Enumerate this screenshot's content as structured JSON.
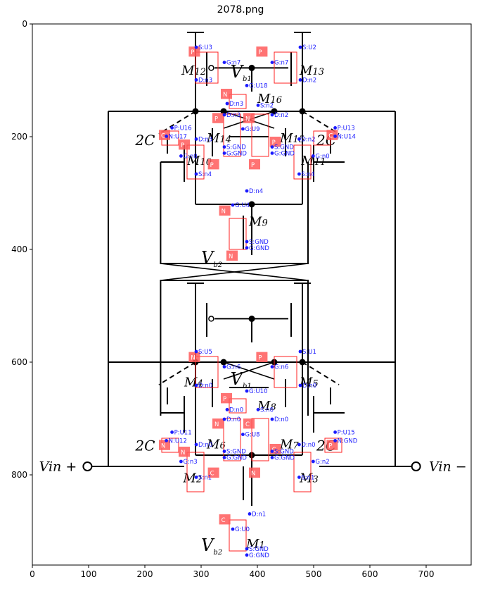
{
  "figure": {
    "title": "2078.png"
  },
  "axes": {
    "x_ticks": [
      "0",
      "100",
      "200",
      "300",
      "400",
      "500",
      "600",
      "700"
    ],
    "y_ticks": [
      "0",
      "200",
      "400",
      "600",
      "800"
    ]
  },
  "circuit": {
    "vin_plus": "Vin +",
    "vin_minus": "Vin −",
    "cap_label": "2C",
    "transistor_labels": [
      "M12",
      "M13",
      "M16",
      "M14",
      "M15",
      "M10",
      "M11",
      "M9",
      "M4",
      "M5",
      "M8",
      "M6",
      "M7",
      "M2",
      "M3",
      "M1"
    ],
    "bias_labels": [
      "V_b1",
      "V_b2",
      "V_b1",
      "V_b2"
    ]
  },
  "annotations": {
    "box_labels": [
      "P",
      "P",
      "N",
      "P",
      "N",
      "C",
      "C",
      "P",
      "P",
      "N",
      "N",
      "P",
      "P",
      "N",
      "C",
      "N",
      "P",
      "N",
      "C",
      "C",
      "P",
      "P",
      "N",
      "C",
      "N"
    ],
    "tags": [
      "S:U3",
      "G:n7",
      "D:n3",
      "S:U2",
      "G:n7",
      "D:n2",
      "G:U18",
      "D:n3",
      "S:n2",
      "D:n3",
      "G:U9",
      "D:n2",
      "S:GND",
      "G:GND",
      "S:GND",
      "G:GND",
      "P:U16",
      "N:U17",
      "P:U13",
      "N:U14",
      "D:n3",
      "G:n0",
      "S:n4",
      "D:n2",
      "G:n0",
      "S:n4",
      "D:n4",
      "G:U4",
      "S:GND",
      "G:GND",
      "S:U5",
      "G:n6",
      "D:n0",
      "S:U1",
      "G:n6",
      "D:n0",
      "G:U10",
      "D:n0",
      "S:n0",
      "D:n0",
      "G:U8",
      "D:n0",
      "S:GND",
      "G:GND",
      "S:GND",
      "G:GND",
      "P:U11",
      "N:U12",
      "P:U15",
      "N:GND",
      "D:n0",
      "G:n3",
      "S:n1",
      "D:n0",
      "G:n2",
      "S:n1",
      "D:n1",
      "G:U0",
      "S:GND",
      "G:GND"
    ]
  }
}
